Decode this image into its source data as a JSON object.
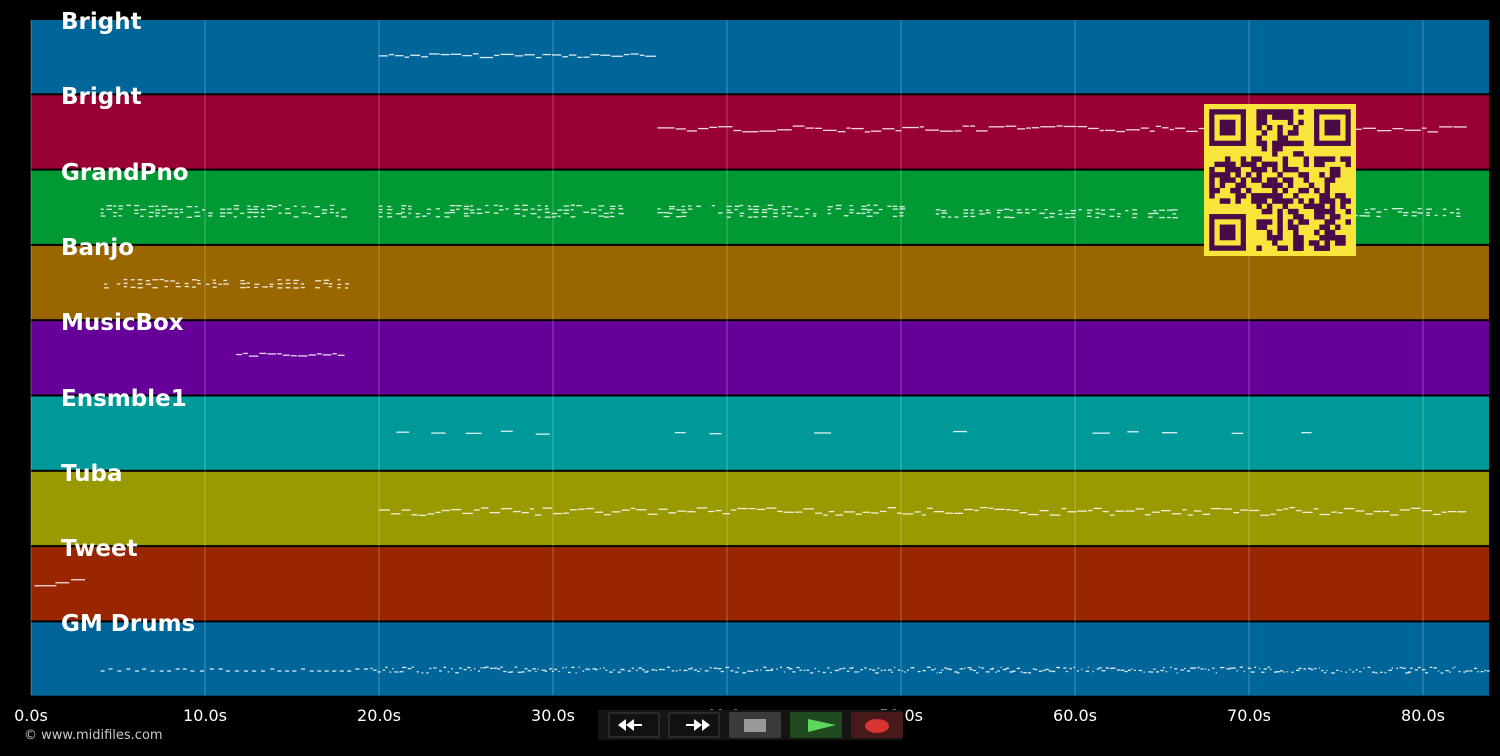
{
  "tracks": [
    {
      "name": "Bright",
      "color": "#006699"
    },
    {
      "name": "Bright",
      "color": "#990033"
    },
    {
      "name": "GrandPno",
      "color": "#009933"
    },
    {
      "name": "Banjo",
      "color": "#996600"
    },
    {
      "name": "MusicBox",
      "color": "#660099"
    },
    {
      "name": "Ensmble1",
      "color": "#009999"
    },
    {
      "name": "Tuba",
      "color": "#999900"
    },
    {
      "name": "Tweet",
      "color": "#992600"
    },
    {
      "name": "GM Drums",
      "color": "#006699"
    }
  ],
  "time_axis": {
    "ticks": [
      "0.0s",
      "10.0s",
      "20.0s",
      "30.0s",
      "40.0s",
      "50.0s",
      "60.0s",
      "70.0s",
      "80.0s"
    ]
  },
  "copyright": "© www.midifiles.com",
  "transport": {
    "rewind": "rewind-icon",
    "fast_forward": "fast-forward-icon",
    "stop": "stop-icon",
    "play": "play-icon",
    "record": "record-icon",
    "play_color": "#5cd65c",
    "record_color": "#d63333"
  },
  "qr_colors": {
    "light": "#f7e53b",
    "dark": "#4a0a4a"
  }
}
